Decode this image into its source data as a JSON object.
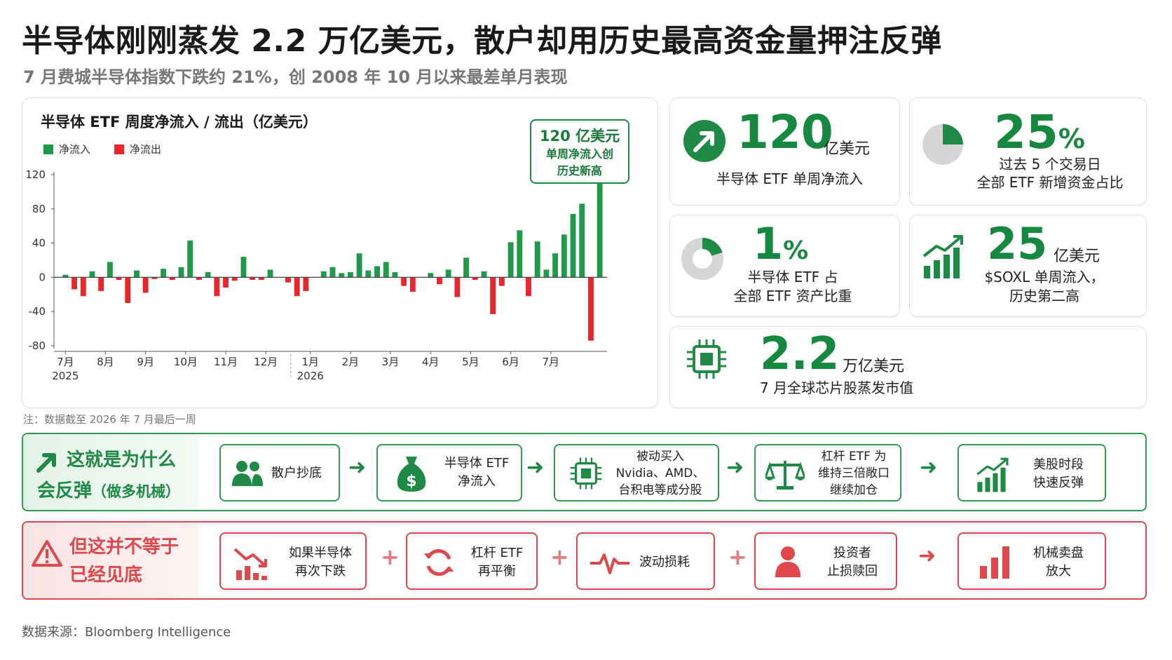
{
  "title": "半导体刚刚蒸发 2.2 万亿美元，散户却用历史最高资金量押注反弹",
  "subtitle": "7 月费城半导体指数下跌约 21%，创 2008 年 10 月以来最差单月表现",
  "chart_data": {
    "type": "bar",
    "title": "半导体 ETF 周度净流入 / 流出（亿美元）",
    "legend": [
      "净流入",
      "净流出"
    ],
    "legend_position": "top-left",
    "colors": {
      "inflow": "#1f9a4a",
      "outflow": "#e8262c"
    },
    "ylim": [
      -80,
      120
    ],
    "yticks": [
      "120",
      "80",
      "40",
      "0",
      "-40",
      "-80"
    ],
    "xticks": [
      "7月",
      "8月",
      "9月",
      "10月",
      "11月",
      "12月",
      "1月",
      "2月",
      "3月",
      "4月",
      "5月",
      "6月",
      "7月"
    ],
    "year_labels": [
      "2025",
      "2026"
    ],
    "grid": false,
    "values": [
      3,
      -14,
      -22,
      7,
      -16,
      18,
      -3,
      -30,
      8,
      -18,
      -2,
      10,
      -3,
      12,
      43,
      -3,
      6,
      -22,
      -12,
      -4,
      24,
      -3,
      -3,
      9,
      0,
      -6,
      -22,
      -16,
      0,
      7,
      12,
      5,
      6,
      28,
      8,
      13,
      18,
      6,
      -10,
      -17,
      0,
      5,
      -8,
      9,
      -23,
      23,
      -3,
      7,
      -43,
      -10,
      41,
      55,
      -22,
      42,
      9,
      28,
      50,
      74,
      86,
      -74,
      118
    ],
    "annotation": {
      "big": "120 亿美元",
      "line1": "单周净流入创",
      "line2": "历史新高"
    }
  },
  "note": "注：数据截至 2026 年 7 月最后一周",
  "stats": {
    "s1": {
      "num": "120",
      "unit": "亿美元",
      "desc": "半导体 ETF 单周净流入",
      "icon": "trend-up-arrow-icon"
    },
    "s2": {
      "num": "25",
      "pct": "%",
      "desc1": "过去 5 个交易日",
      "desc2": "全部 ETF 新增资金占比",
      "share": 0.25,
      "icon": "pie-chart-icon"
    },
    "s3": {
      "num": "1",
      "pct": "%",
      "desc1": "半导体 ETF 占",
      "desc2": "全部 ETF 资产比重",
      "share": 0.01,
      "icon": "donut-chart-icon"
    },
    "s4": {
      "num": "25",
      "unit": "亿美元",
      "desc1": "$SOXL 单周流入，",
      "desc2": "历史第二高",
      "icon": "bar-growth-icon"
    },
    "s5": {
      "num": "2.2",
      "unit": "万亿美元",
      "desc": "7 月全球芯片股蒸发市值",
      "icon": "chip-icon"
    }
  },
  "green_row": {
    "head1": "这就是为什么",
    "head2": "会反弹",
    "head2_sub": "（做多机械）",
    "steps": [
      {
        "l1": "散户抄底",
        "l2": "",
        "l3": "",
        "icon": "users-icon"
      },
      {
        "l1": "半导体 ETF",
        "l2": "净流入",
        "l3": "",
        "icon": "money-bag-icon"
      },
      {
        "l1": "被动买入",
        "l2": "Nvidia、AMD、",
        "l3": "台积电等成分股",
        "icon": "chip-icon"
      },
      {
        "l1": "杠杆 ETF 为",
        "l2": "维持三倍敞口",
        "l3": "继续加仓",
        "icon": "balance-scale-icon"
      },
      {
        "l1": "美股时段",
        "l2": "快速反弹",
        "l3": "",
        "icon": "bar-growth-icon"
      }
    ]
  },
  "red_row": {
    "head1": "但这并不等于",
    "head2": "已经见底",
    "steps": [
      {
        "l1": "如果半导体",
        "l2": "再次下跌",
        "icon": "trend-down-icon"
      },
      {
        "l1": "杠杆 ETF",
        "l2": "再平衡",
        "icon": "refresh-icon"
      },
      {
        "l1": "波动损耗",
        "l2": "",
        "icon": "pulse-icon"
      },
      {
        "l1": "投资者",
        "l2": "止损赎回",
        "icon": "person-icon"
      },
      {
        "l1": "机械卖盘",
        "l2": "放大",
        "icon": "bar-chart-icon"
      }
    ]
  },
  "source": "数据来源：Bloomberg Intelligence"
}
